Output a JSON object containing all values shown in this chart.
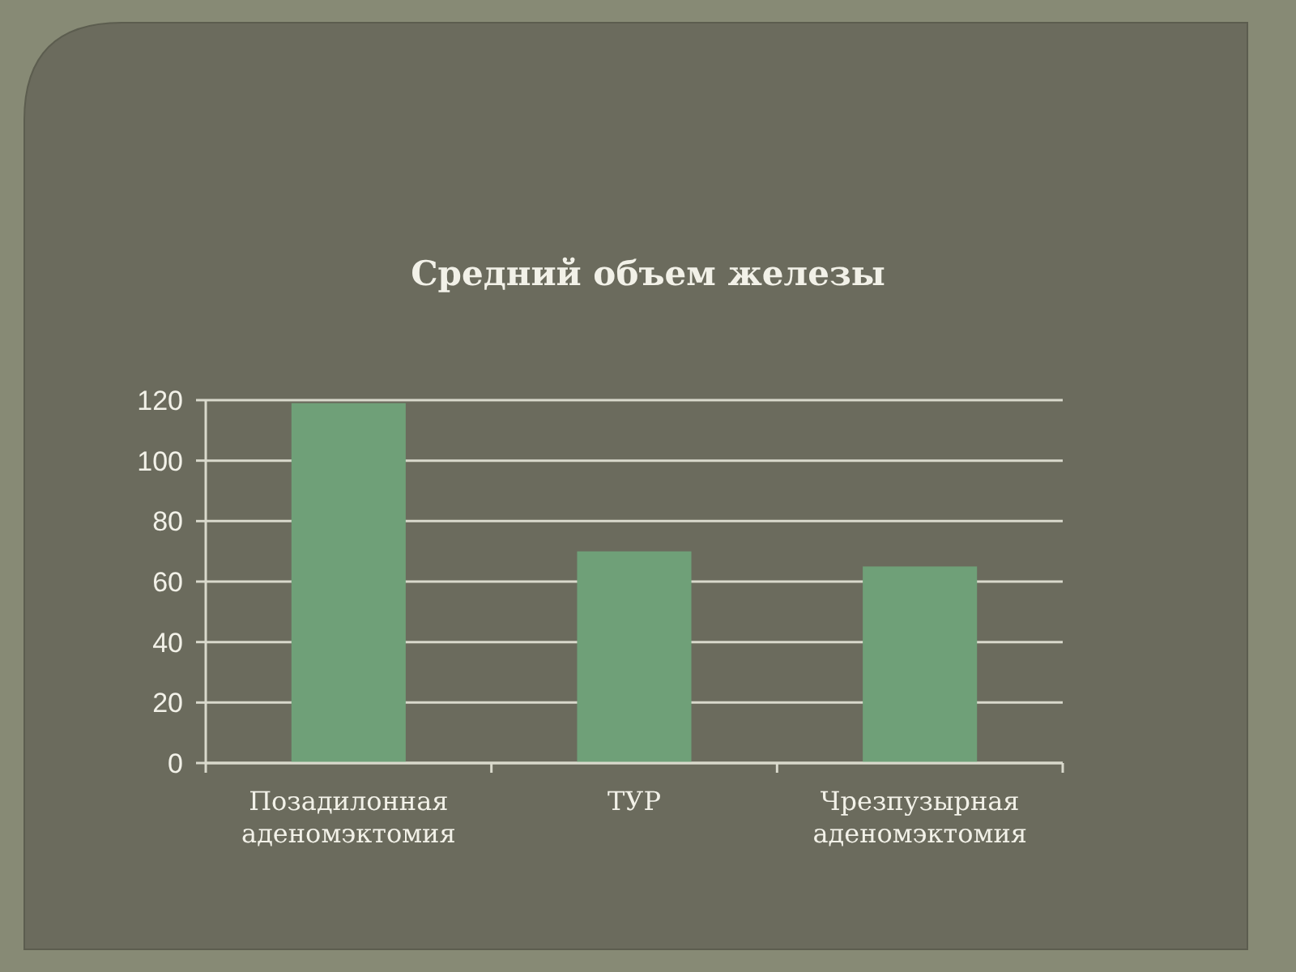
{
  "chart_data": {
    "type": "bar",
    "title": "Средний объем железы",
    "categories": [
      "Позадилонная аденомэктомия",
      "ТУР",
      "Чрезпузырная аденомэктомия"
    ],
    "values": [
      119,
      70,
      65
    ],
    "color": "#6fa078",
    "ylim": [
      0,
      120
    ],
    "yticks": [
      0,
      20,
      40,
      60,
      80,
      100,
      120
    ],
    "grid": "y"
  }
}
